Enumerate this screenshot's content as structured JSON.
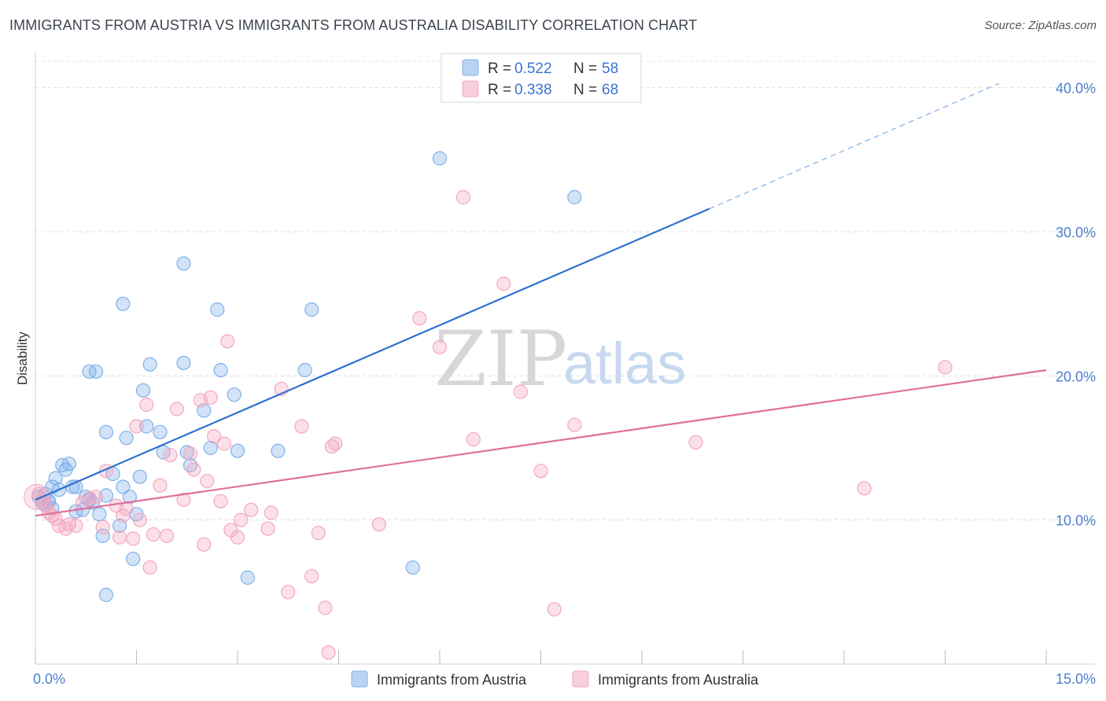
{
  "header": {
    "title": "IMMIGRANTS FROM AUSTRIA VS IMMIGRANTS FROM AUSTRALIA DISABILITY CORRELATION CHART",
    "source": "Source: ZipAtlas.com"
  },
  "watermark": {
    "zip": "ZIP",
    "atlas": "atlas"
  },
  "legend": {
    "rows": [
      {
        "r_label": "R = ",
        "r_value": "0.522",
        "n_label": "N = ",
        "n_value": "58",
        "color": "#7fb0ea"
      },
      {
        "r_label": "R = ",
        "r_value": "0.338",
        "n_label": "N = ",
        "n_value": "68",
        "color": "#f4a7bf"
      }
    ]
  },
  "bottom_legend": {
    "items": [
      {
        "label": "Immigrants from Austria",
        "color": "#7fb0ea"
      },
      {
        "label": "Immigrants from Australia",
        "color": "#f4a7bf"
      }
    ]
  },
  "chart_data": {
    "type": "scatter",
    "title": "IMMIGRANTS FROM AUSTRIA VS IMMIGRANTS FROM AUSTRALIA DISABILITY CORRELATION CHART",
    "xlabel": "",
    "ylabel": "Disability",
    "xlim": [
      0,
      15
    ],
    "ylim": [
      0,
      42
    ],
    "x_tick_labels": [
      "0.0%",
      "15.0%"
    ],
    "y_ticks": [
      10,
      20,
      30,
      40
    ],
    "y_tick_labels": [
      "10.0%",
      "20.0%",
      "30.0%",
      "40.0%"
    ],
    "grid": true,
    "legend_position": "top-center",
    "series": [
      {
        "name": "Immigrants from Austria",
        "color": "#7fb0ea",
        "line_color": "#2f72d0",
        "r": 0.522,
        "n": 58,
        "trend": {
          "x0": 0.0,
          "y0": 11.4,
          "x1": 10.0,
          "y1": 31.6,
          "dash_x1": 14.3,
          "dash_y1": 40.3
        },
        "points": [
          [
            0.05,
            11.6
          ],
          [
            0.1,
            11.2
          ],
          [
            0.15,
            11.0
          ],
          [
            0.2,
            11.3
          ],
          [
            0.25,
            12.3
          ],
          [
            0.3,
            12.9
          ],
          [
            0.35,
            12.1
          ],
          [
            0.4,
            13.8
          ],
          [
            0.45,
            13.5
          ],
          [
            0.5,
            13.9
          ],
          [
            0.55,
            12.3
          ],
          [
            0.6,
            10.6
          ],
          [
            0.7,
            10.7
          ],
          [
            0.75,
            11.6
          ],
          [
            0.8,
            11.4
          ],
          [
            0.85,
            11.2
          ],
          [
            0.95,
            10.4
          ],
          [
            1.0,
            8.9
          ],
          [
            1.05,
            11.7
          ],
          [
            1.15,
            13.2
          ],
          [
            1.25,
            9.6
          ],
          [
            1.3,
            12.3
          ],
          [
            1.4,
            11.6
          ],
          [
            1.35,
            15.7
          ],
          [
            1.5,
            10.4
          ],
          [
            1.55,
            13.0
          ],
          [
            1.65,
            16.5
          ],
          [
            1.6,
            19.0
          ],
          [
            1.7,
            20.8
          ],
          [
            1.85,
            16.1
          ],
          [
            1.9,
            14.7
          ],
          [
            2.2,
            20.9
          ],
          [
            2.25,
            14.7
          ],
          [
            2.3,
            13.8
          ],
          [
            2.5,
            17.6
          ],
          [
            2.6,
            15.0
          ],
          [
            2.7,
            24.6
          ],
          [
            2.75,
            20.4
          ],
          [
            2.95,
            18.7
          ],
          [
            3.0,
            14.8
          ],
          [
            3.15,
            6.0
          ],
          [
            3.6,
            14.8
          ],
          [
            4.1,
            24.6
          ],
          [
            4.0,
            20.4
          ],
          [
            2.2,
            27.8
          ],
          [
            1.3,
            25.0
          ],
          [
            0.9,
            20.3
          ],
          [
            0.8,
            20.3
          ],
          [
            1.05,
            16.1
          ],
          [
            1.45,
            7.3
          ],
          [
            1.05,
            4.8
          ],
          [
            5.6,
            6.7
          ],
          [
            6.0,
            35.1
          ],
          [
            8.0,
            32.4
          ],
          [
            0.2,
            11.3
          ],
          [
            0.25,
            10.8
          ],
          [
            0.15,
            11.8
          ],
          [
            0.6,
            12.3
          ]
        ]
      },
      {
        "name": "Immigrants from Australia",
        "color": "#f4a7bf",
        "line_color": "#e0709a",
        "r": 0.338,
        "n": 68,
        "trend": {
          "x0": 0.0,
          "y0": 10.3,
          "x1": 15.0,
          "y1": 20.4
        },
        "points": [
          [
            0.05,
            11.8
          ],
          [
            0.1,
            11.4
          ],
          [
            0.15,
            11.0
          ],
          [
            0.2,
            10.5
          ],
          [
            0.25,
            10.3
          ],
          [
            0.3,
            10.1
          ],
          [
            0.35,
            9.6
          ],
          [
            0.45,
            9.4
          ],
          [
            0.5,
            9.7
          ],
          [
            0.6,
            9.6
          ],
          [
            0.7,
            11.2
          ],
          [
            0.8,
            11.5
          ],
          [
            0.9,
            11.6
          ],
          [
            1.0,
            9.5
          ],
          [
            1.05,
            13.4
          ],
          [
            1.2,
            11.0
          ],
          [
            1.25,
            8.8
          ],
          [
            1.3,
            10.3
          ],
          [
            1.35,
            10.8
          ],
          [
            1.5,
            16.5
          ],
          [
            1.55,
            10.0
          ],
          [
            1.65,
            18.0
          ],
          [
            1.7,
            6.7
          ],
          [
            1.75,
            9.0
          ],
          [
            1.85,
            12.4
          ],
          [
            1.95,
            8.9
          ],
          [
            2.0,
            14.5
          ],
          [
            2.1,
            17.7
          ],
          [
            2.2,
            11.4
          ],
          [
            2.3,
            14.6
          ],
          [
            2.35,
            13.5
          ],
          [
            2.45,
            18.3
          ],
          [
            2.55,
            12.7
          ],
          [
            2.65,
            15.8
          ],
          [
            2.75,
            11.3
          ],
          [
            2.8,
            15.3
          ],
          [
            2.9,
            9.3
          ],
          [
            3.0,
            8.8
          ],
          [
            3.05,
            10.0
          ],
          [
            3.2,
            10.7
          ],
          [
            3.45,
            9.4
          ],
          [
            3.5,
            10.5
          ],
          [
            3.65,
            19.1
          ],
          [
            3.75,
            5.0
          ],
          [
            3.95,
            16.5
          ],
          [
            4.2,
            9.1
          ],
          [
            4.4,
            15.1
          ],
          [
            4.45,
            15.3
          ],
          [
            4.1,
            6.1
          ],
          [
            4.3,
            3.9
          ],
          [
            4.35,
            0.8
          ],
          [
            5.1,
            9.7
          ],
          [
            5.7,
            24.0
          ],
          [
            6.0,
            22.0
          ],
          [
            6.35,
            32.4
          ],
          [
            6.5,
            15.6
          ],
          [
            6.95,
            26.4
          ],
          [
            7.2,
            18.9
          ],
          [
            7.5,
            13.4
          ],
          [
            7.7,
            3.8
          ],
          [
            8.0,
            16.6
          ],
          [
            9.8,
            15.4
          ],
          [
            12.3,
            12.2
          ],
          [
            13.5,
            20.6
          ],
          [
            2.85,
            22.4
          ],
          [
            2.6,
            18.5
          ],
          [
            1.45,
            8.7
          ],
          [
            2.5,
            8.3
          ]
        ]
      }
    ]
  }
}
